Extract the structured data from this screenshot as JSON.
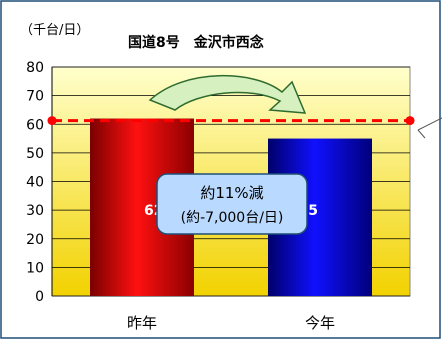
{
  "chart_data": {
    "type": "bar",
    "title": "国道8号　金沢市西念",
    "unit_label": "（千台/日）",
    "categories": [
      "昨年",
      "今年"
    ],
    "values": [
      62,
      55
    ],
    "data_labels": [
      "62",
      "55"
    ],
    "ylim": [
      0,
      80
    ],
    "yticks": [
      0,
      10,
      20,
      30,
      40,
      50,
      60,
      70,
      80
    ],
    "grid": true,
    "reference_line": {
      "value": 55,
      "style": "dashed",
      "color": "#ff0000"
    },
    "annotation": {
      "line1": "約11%減",
      "line2": "(約-7,000台/日)"
    },
    "colors": {
      "bar_last_year": "#cc0000",
      "bar_this_year": "#0000aa",
      "plot_bg_top": "#ffffcc",
      "plot_bg_bottom": "#f2d200",
      "callout_fill": "#b9d9ff",
      "arrow_fill": "#d6f0c0",
      "border": "#1f4e79"
    },
    "xlabel": "",
    "ylabel": ""
  }
}
